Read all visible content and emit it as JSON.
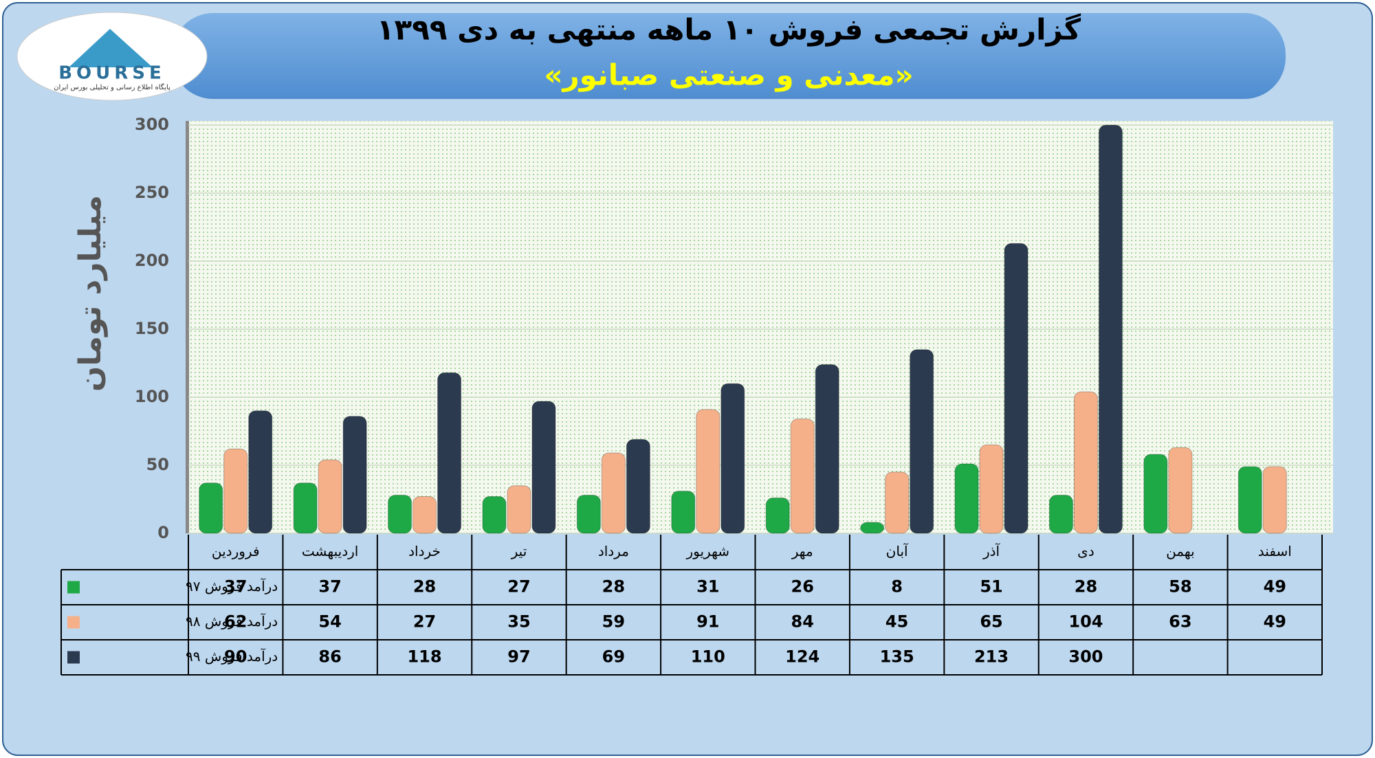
{
  "logo": {
    "text": "BOURSE",
    "tagline": "پایگاه اطلاع رسانی و تحلیلی بورس ایران"
  },
  "chart_data": {
    "type": "bar",
    "title": "گزارش تجمعی فروش ۱۰ ماهه منتهی به دی ۱۳۹۹",
    "subtitle": "«معدنی و صنعتی صبانور»",
    "y_label": "میلیارد تومان",
    "categories": [
      "فروردین",
      "اردیبهشت",
      "خرداد",
      "تیر",
      "مرداد",
      "شهریور",
      "مهر",
      "آبان",
      "آذر",
      "دی",
      "بهمن",
      "اسفند"
    ],
    "series": [
      {
        "name": "درآمد فروش ۹۷",
        "color": "#1fa846",
        "values": [
          37,
          37,
          28,
          27,
          28,
          31,
          26,
          8,
          51,
          28,
          58,
          49
        ]
      },
      {
        "name": "درآمد فروش ۹۸",
        "color": "#f5b08a",
        "values": [
          62,
          54,
          27,
          35,
          59,
          91,
          84,
          45,
          65,
          104,
          63,
          49
        ]
      },
      {
        "name": "درآمد فروش ۹۹",
        "color": "#2b3a4f",
        "values": [
          90,
          86,
          118,
          97,
          69,
          110,
          124,
          135,
          213,
          300,
          null,
          null
        ]
      }
    ],
    "ylim": [
      0,
      300
    ],
    "yticks": [
      0,
      50,
      100,
      150,
      200,
      250,
      300
    ],
    "grid": true
  }
}
